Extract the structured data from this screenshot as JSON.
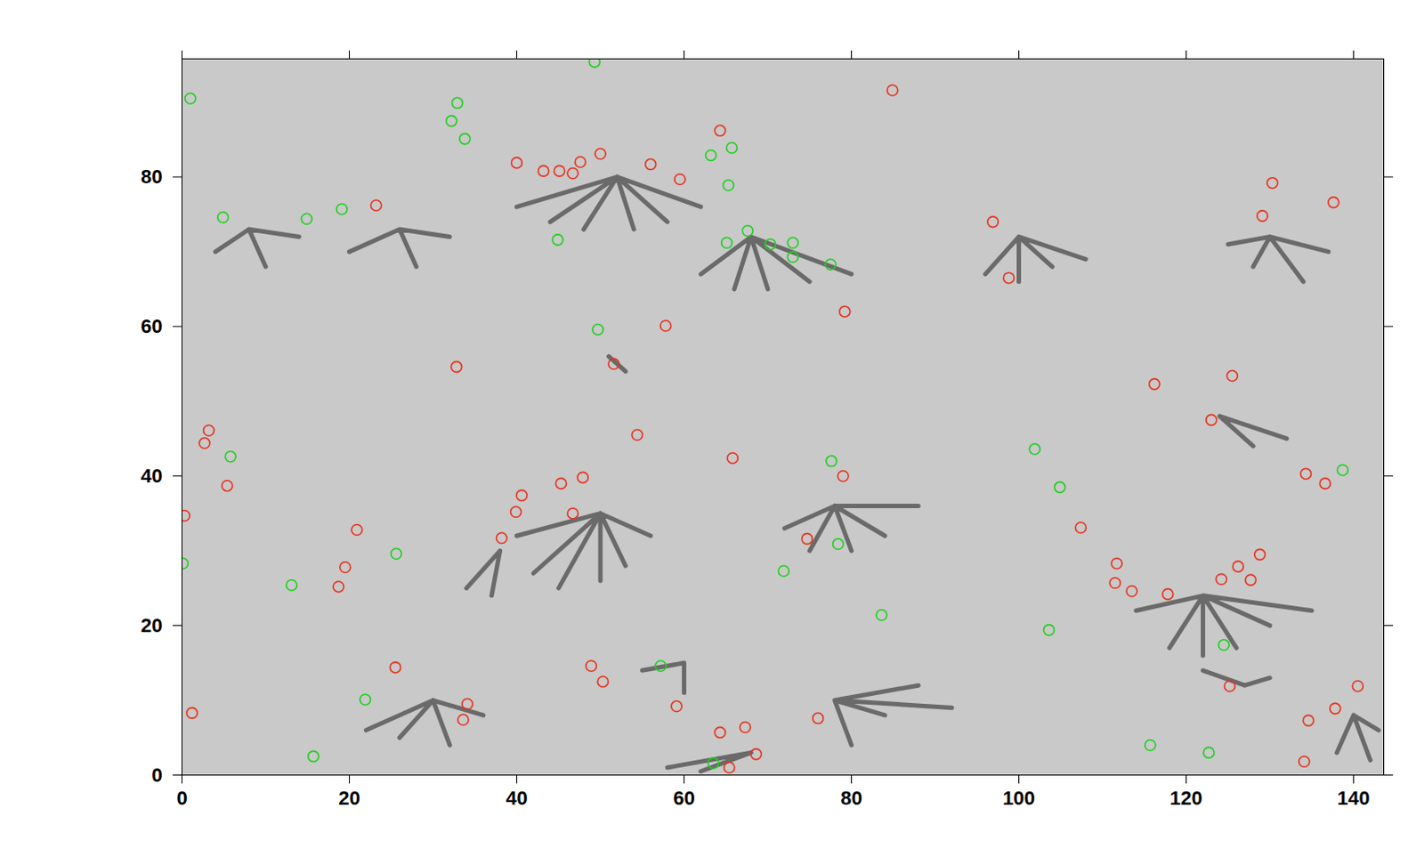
{
  "chart_data": {
    "type": "scatter",
    "xlim": [
      0,
      143.6
    ],
    "ylim": [
      0,
      95.8
    ],
    "xticks": [
      0,
      20,
      40,
      60,
      80,
      100,
      120,
      140
    ],
    "yticks": [
      0,
      20,
      40,
      60,
      80
    ],
    "series": [
      {
        "type": "line",
        "color": "#2b2b2b",
        "x": [
          52,
          40,
          null,
          52,
          44,
          null,
          52,
          48,
          null,
          52,
          54,
          null,
          52,
          58,
          null,
          52,
          62,
          null,
          68,
          62,
          null,
          68,
          66,
          null,
          68,
          70,
          null,
          68,
          75,
          null,
          68,
          80,
          null,
          100,
          96,
          null,
          100,
          100,
          null,
          100,
          104,
          null,
          100,
          108,
          null,
          130,
          125,
          null,
          130,
          128,
          null,
          130,
          134,
          null,
          130,
          137,
          null,
          8,
          4,
          null,
          8,
          10,
          null,
          8,
          14,
          null,
          26,
          20,
          null,
          26,
          28,
          null,
          26,
          32,
          null,
          50,
          40,
          null,
          50,
          42,
          null,
          50,
          45,
          null,
          50,
          50,
          null,
          50,
          53,
          null,
          50,
          56,
          null,
          38,
          34,
          null,
          38,
          37,
          null,
          78,
          72,
          null,
          78,
          75,
          null,
          78,
          80,
          null,
          78,
          84,
          null,
          78,
          88,
          null,
          122,
          114,
          null,
          122,
          118,
          null,
          122,
          122,
          null,
          122,
          126,
          null,
          122,
          130,
          null,
          122,
          135,
          null,
          30,
          22,
          null,
          30,
          26,
          null,
          30,
          32,
          null,
          30,
          36,
          null,
          68,
          58,
          null,
          68,
          62,
          null,
          78,
          80,
          null,
          78,
          84,
          null,
          78,
          88,
          null,
          78,
          92,
          null,
          140,
          138,
          null,
          140,
          142,
          null,
          140,
          143,
          null,
          127,
          122,
          null,
          127,
          130,
          null,
          51,
          53,
          null,
          124,
          128,
          null,
          124,
          132,
          null,
          60,
          55,
          null,
          60,
          60
        ],
        "y": [
          80,
          76,
          null,
          80,
          74,
          null,
          80,
          73,
          null,
          80,
          73,
          null,
          80,
          74,
          null,
          80,
          76,
          null,
          72,
          67,
          null,
          72,
          65,
          null,
          72,
          65,
          null,
          72,
          66,
          null,
          72,
          67,
          null,
          72,
          67,
          null,
          72,
          66,
          null,
          72,
          68,
          null,
          72,
          69,
          null,
          72,
          71,
          null,
          72,
          68,
          null,
          72,
          66,
          null,
          72,
          70,
          null,
          73,
          70,
          null,
          73,
          68,
          null,
          73,
          72,
          null,
          73,
          70,
          null,
          73,
          68,
          null,
          73,
          72,
          null,
          35,
          32,
          null,
          35,
          27,
          null,
          35,
          25,
          null,
          35,
          26,
          null,
          35,
          28,
          null,
          35,
          32,
          null,
          30,
          25,
          null,
          30,
          24,
          null,
          36,
          33,
          null,
          36,
          30,
          null,
          36,
          30,
          null,
          36,
          32,
          null,
          36,
          36,
          null,
          24,
          22,
          null,
          24,
          17,
          null,
          24,
          16,
          null,
          24,
          17,
          null,
          24,
          20,
          null,
          24,
          22,
          null,
          10,
          6,
          null,
          10,
          5,
          null,
          10,
          4,
          null,
          10,
          8,
          null,
          3,
          1,
          null,
          3,
          0.5,
          null,
          10,
          4,
          null,
          10,
          8,
          null,
          10,
          12,
          null,
          10,
          9,
          null,
          8,
          3,
          null,
          8,
          2,
          null,
          8,
          6,
          null,
          12,
          14,
          null,
          12,
          13,
          null,
          56,
          54,
          null,
          48,
          44,
          null,
          48,
          45,
          null,
          15,
          14,
          null,
          15,
          11
        ]
      },
      {
        "type": "scatter",
        "color": "#e8321e",
        "marker": "circle",
        "x": [
          40,
          43.2,
          45.1,
          46.7,
          47.6,
          50,
          56,
          59.5,
          64.3,
          84.9,
          23.2,
          96.9,
          98.8,
          130.3,
          137.6,
          129.1,
          57.8,
          79.2,
          32.8,
          51.6,
          116.2,
          125.5,
          123,
          3.2,
          2.7,
          5.4,
          0.3,
          20.9,
          19.5,
          18.7,
          25.5,
          1.2,
          34.1,
          33.6,
          38.2,
          40.6,
          39.9,
          45.3,
          47.9,
          46.7,
          54.4,
          65.8,
          79,
          74.7,
          107.4,
          111.5,
          113.5,
          117.8,
          111.7,
          124.2,
          126.2,
          127.7,
          128.8,
          134.3,
          136.6,
          48.9,
          50.3,
          59.1,
          64.3,
          67.3,
          68.6,
          65.4,
          76,
          125.2,
          134.6,
          137.8,
          140.5,
          134.1
        ],
        "y": [
          81.9,
          80.8,
          80.8,
          80.5,
          82,
          83.1,
          81.7,
          79.7,
          86.2,
          91.6,
          76.2,
          74,
          66.5,
          79.2,
          76.6,
          74.8,
          60.1,
          62,
          54.6,
          55,
          52.3,
          53.4,
          47.5,
          46.1,
          44.4,
          38.7,
          34.7,
          32.8,
          27.8,
          25.2,
          14.4,
          8.3,
          9.5,
          7.4,
          31.7,
          37.4,
          35.2,
          39,
          39.8,
          35,
          45.5,
          42.4,
          40,
          31.6,
          33.1,
          25.7,
          24.6,
          24.2,
          28.3,
          26.2,
          27.9,
          26.1,
          29.5,
          40.3,
          39,
          14.6,
          12.5,
          9.2,
          5.7,
          6.4,
          2.8,
          1,
          7.6,
          11.9,
          7.3,
          8.9,
          11.9,
          1.8
        ]
      },
      {
        "type": "scatter",
        "color": "#1fcf1f",
        "marker": "circle",
        "x": [
          1,
          32.9,
          32.2,
          33.8,
          49.3,
          63.2,
          65.7,
          65.3,
          4.9,
          14.9,
          19.1,
          44.9,
          65.1,
          67.6,
          70.3,
          73,
          73,
          77.5,
          49.7,
          5.8,
          77.6,
          101.9,
          104.9,
          138.7,
          25.6,
          0.1,
          13.1,
          78.4,
          71.9,
          83.6,
          103.6,
          124.5,
          57.2,
          21.9,
          15.7,
          63.5,
          115.7,
          122.7
        ],
        "y": [
          90.5,
          89.9,
          87.5,
          85.1,
          95.4,
          82.9,
          83.9,
          78.9,
          74.6,
          74.4,
          75.7,
          71.6,
          71.2,
          72.8,
          71,
          71.2,
          69.3,
          68.3,
          59.6,
          42.6,
          42,
          43.6,
          38.5,
          40.8,
          29.6,
          28.3,
          25.4,
          30.9,
          27.3,
          21.4,
          19.4,
          17.4,
          14.6,
          10.1,
          2.5,
          1.6,
          4,
          3
        ]
      }
    ]
  }
}
